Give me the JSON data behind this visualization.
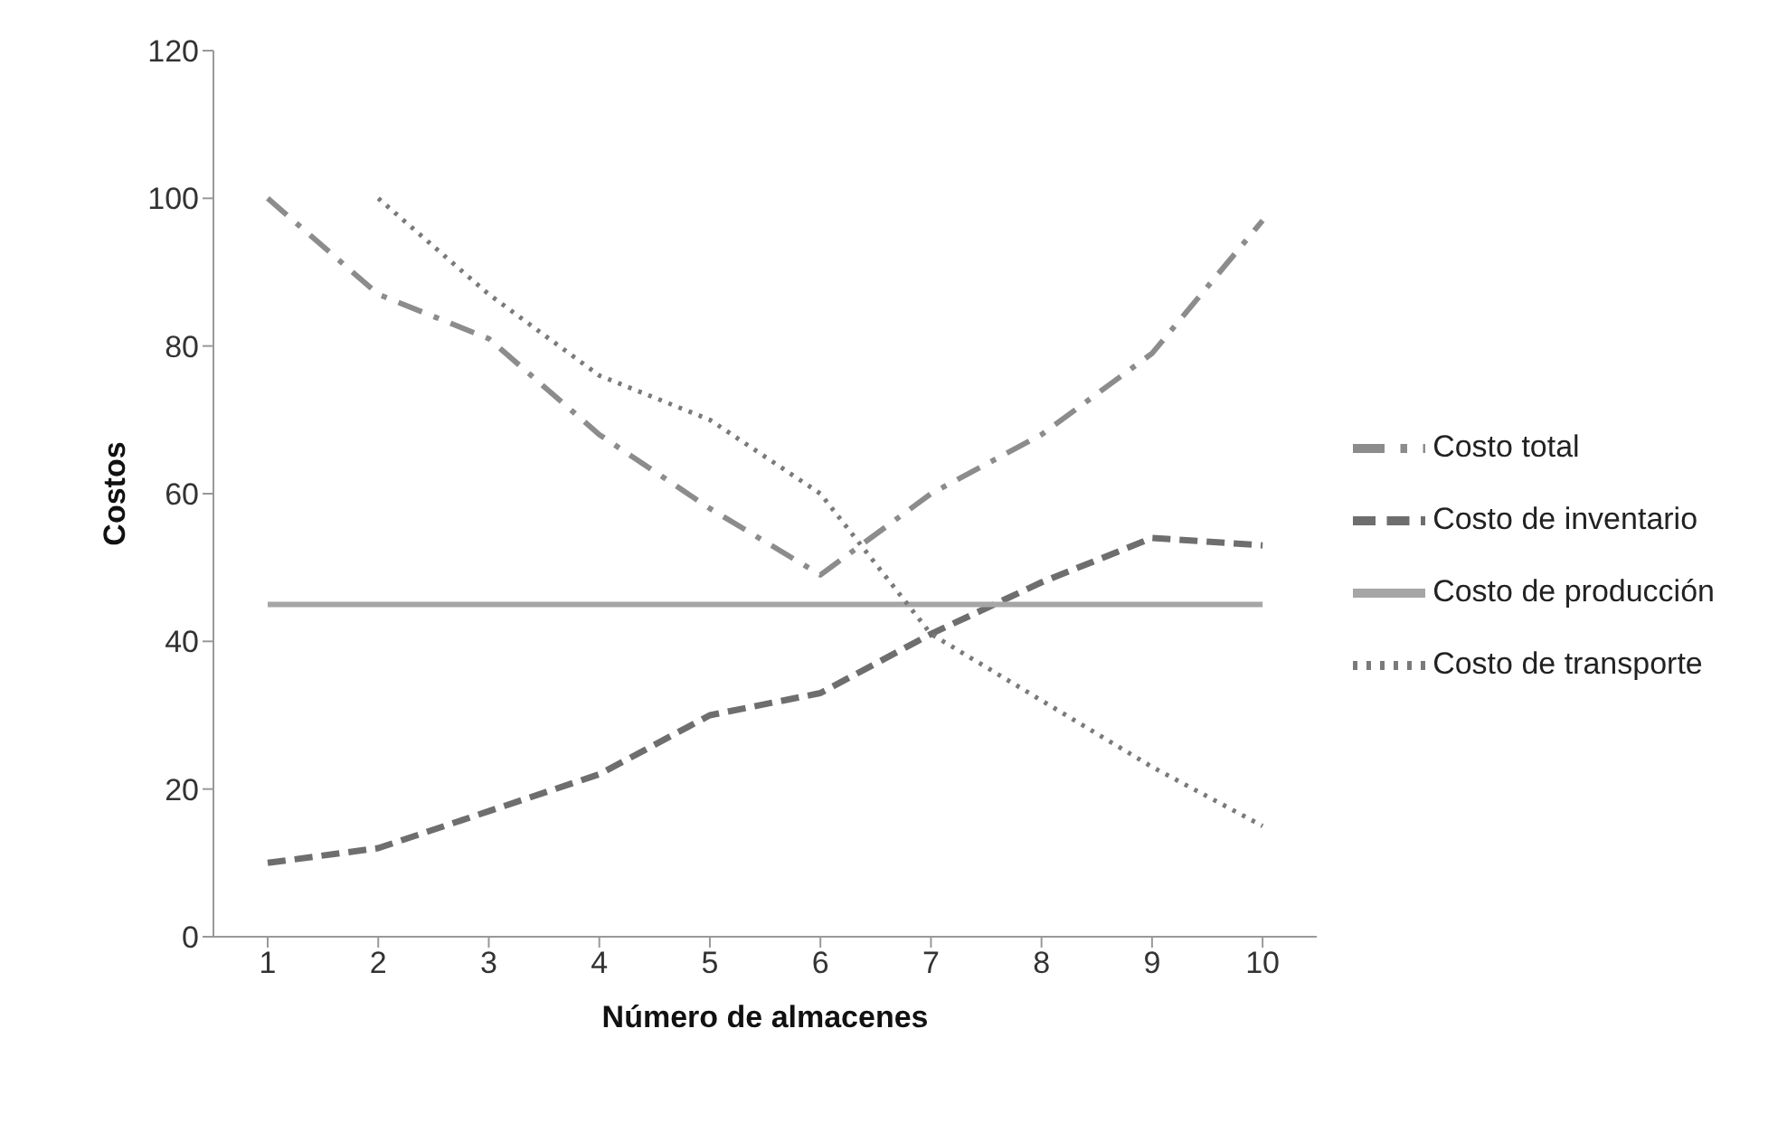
{
  "chart_data": {
    "type": "line",
    "xlabel": "Número de almacenes",
    "ylabel": "Costos",
    "categories": [
      "1",
      "2",
      "3",
      "4",
      "5",
      "6",
      "7",
      "8",
      "9",
      "10"
    ],
    "ylim": [
      0,
      120
    ],
    "yticks": [
      0,
      20,
      40,
      60,
      80,
      100,
      120
    ],
    "grid": false,
    "legend": "right",
    "marker": "none",
    "series": [
      {
        "name": "Costo total",
        "color": "#8c8c8c",
        "line_style": "dashdot",
        "values": [
          100,
          87,
          81,
          68,
          58,
          49,
          60,
          68,
          79,
          97
        ]
      },
      {
        "name": "Costo de inventario",
        "color": "#6e6e6e",
        "line_style": "dashed",
        "values": [
          10,
          12,
          17,
          22,
          30,
          33,
          41,
          48,
          54,
          53
        ]
      },
      {
        "name": "Costo de producción",
        "color": "#a6a6a6",
        "line_style": "solid",
        "values": [
          45,
          45,
          45,
          45,
          45,
          45,
          45,
          45,
          45,
          45
        ]
      },
      {
        "name": "Costo de transporte",
        "color": "#7a7a7a",
        "line_style": "dotted",
        "values": [
          null,
          100,
          87,
          76,
          70,
          60,
          41,
          32,
          23,
          15
        ]
      }
    ]
  }
}
